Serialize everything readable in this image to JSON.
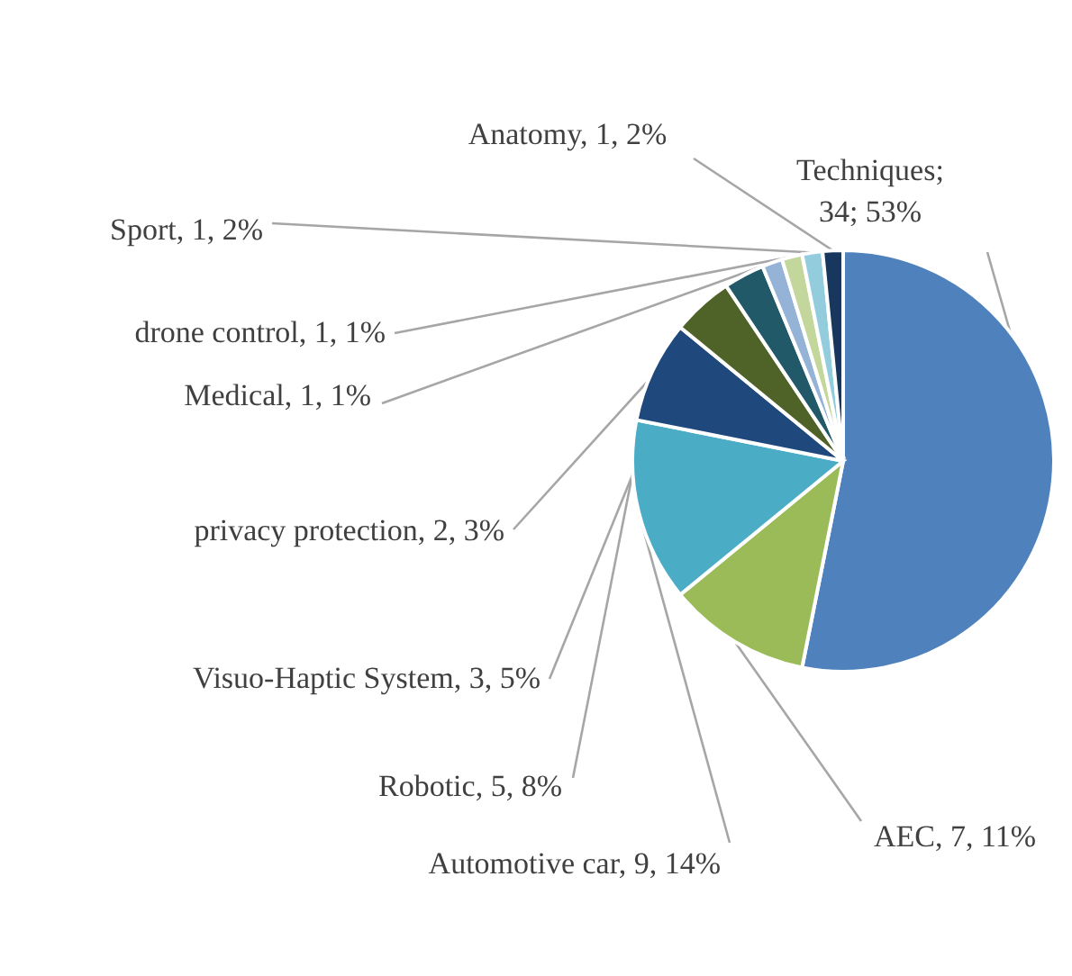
{
  "chart_data": {
    "type": "pie",
    "categories": [
      "Techniques",
      "AEC",
      "Automotive car",
      "Robotic",
      "Visuo-Haptic System",
      "privacy protection",
      "Medical",
      "drone control",
      "Sport",
      "Anatomy"
    ],
    "values": [
      34,
      7,
      9,
      5,
      3,
      2,
      1,
      1,
      1,
      1
    ],
    "value_labels": [
      "; 34; 53%",
      ", 7, 11%",
      ", 9, 14%",
      ", 5, 8%",
      ", 3, 5%",
      ", 2, 3%",
      ", 1, 1%",
      ", 1, 1%",
      ", 1, 2%",
      ", 1, 2%"
    ],
    "colors": [
      "#4f81bd",
      "#9bbb59",
      "#4bacc6",
      "#1f497d",
      "#4f6228",
      "#215968",
      "#95b3d7",
      "#c3d69b",
      "#93cddd",
      "#17375e"
    ],
    "legend": false
  }
}
